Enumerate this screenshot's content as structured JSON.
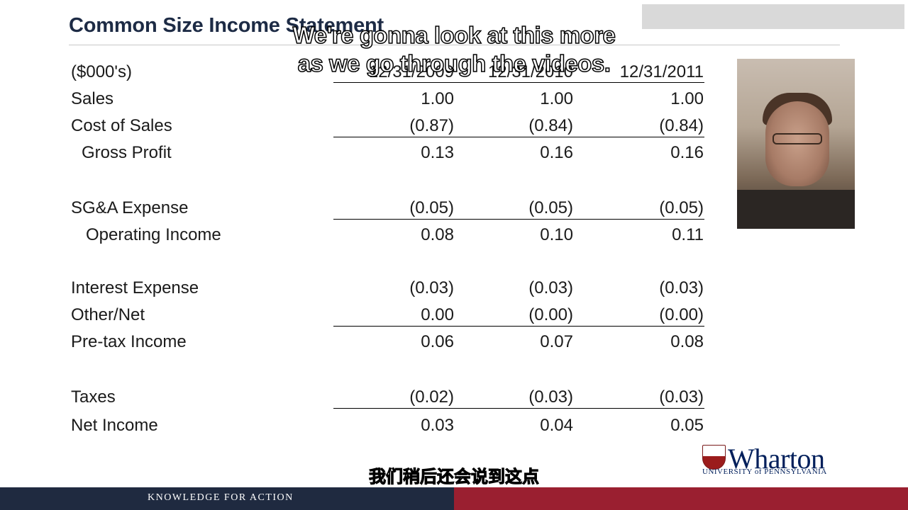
{
  "slide": {
    "title": "Common Size Income Statement",
    "unit_label": "($000's)",
    "columns": [
      "12/31/2009",
      "12/31/2010",
      "12/31/2011"
    ],
    "rows": [
      {
        "label": "Sales",
        "values": [
          "1.00",
          "1.00",
          "1.00"
        ]
      },
      {
        "label": "Cost of Sales",
        "values": [
          "(0.87)",
          "(0.84)",
          "(0.84)"
        ]
      },
      {
        "label": "Gross Profit",
        "values": [
          "0.13",
          "0.16",
          "0.16"
        ]
      },
      {
        "label": "SG&A Expense",
        "values": [
          "(0.05)",
          "(0.05)",
          "(0.05)"
        ]
      },
      {
        "label": "Operating Income",
        "values": [
          "0.08",
          "0.10",
          "0.11"
        ]
      },
      {
        "label": "Interest Expense",
        "values": [
          "(0.03)",
          "(0.03)",
          "(0.03)"
        ]
      },
      {
        "label": "Other/Net",
        "values": [
          "0.00",
          "(0.00)",
          "(0.00)"
        ]
      },
      {
        "label": "Pre-tax Income",
        "values": [
          "0.06",
          "0.07",
          "0.08"
        ]
      },
      {
        "label": "Taxes",
        "values": [
          "(0.02)",
          "(0.03)",
          "(0.03)"
        ]
      },
      {
        "label": "Net Income",
        "values": [
          "0.03",
          "0.04",
          "0.05"
        ]
      }
    ]
  },
  "subtitles": {
    "english": "We're gonna look at this more as we go through the videos.",
    "chinese": "我们稍后还会说到这点"
  },
  "branding": {
    "logo_name": "Wharton",
    "logo_subtitle": "UNIVERSITY of PENNSYLVANIA",
    "tagline": "KNOWLEDGE FOR ACTION",
    "colors": {
      "navy": "#1f2a40",
      "red": "#9a1f30",
      "logo_blue": "#011f5b"
    }
  },
  "icons": {
    "logo_mark": "penn-shield-icon"
  }
}
